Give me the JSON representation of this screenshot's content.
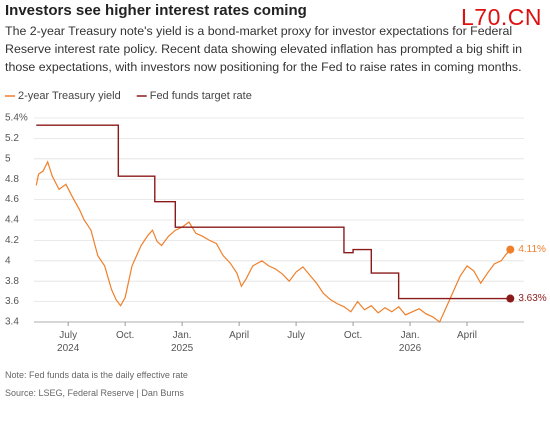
{
  "chart_data": {
    "type": "line",
    "title": "Investors see higher interest rates coming",
    "subtitle": "The 2-year Treasury note's yield is a bond-market proxy for investor expectations for Federal Reserve interest rate policy. Recent data showing elevated inflation has prompted a big shift in those expectations, with investors now positioning for the Fed to raise rates in coming months.",
    "watermark": "L70.CN",
    "note": "Note: Fed funds data is the daily effective rate",
    "source": "Source: LSEG, Federal Reserve | Dan Burns",
    "xlim": [
      2024.35,
      2026.5
    ],
    "xticks": [
      {
        "value": 2024.5,
        "label": "July\n2024"
      },
      {
        "value": 2024.75,
        "label": "Oct."
      },
      {
        "value": 2025.0,
        "label": "Jan.\n2025"
      },
      {
        "value": 2025.25,
        "label": "April"
      },
      {
        "value": 2025.5,
        "label": "July"
      },
      {
        "value": 2025.75,
        "label": "Oct."
      },
      {
        "value": 2026.0,
        "label": "Jan.\n2026"
      },
      {
        "value": 2026.25,
        "label": "April"
      }
    ],
    "ylim": [
      3.4,
      5.4
    ],
    "yticks": [
      {
        "value": 5.4,
        "label": "5.4%"
      },
      5.2,
      5,
      4.8,
      4.6,
      4.4,
      4.2,
      4,
      3.8,
      3.6,
      3.4
    ],
    "grid": true,
    "legend": "top-left",
    "series": [
      {
        "name": "2-year Treasury yield",
        "color": "#f07f2a",
        "step": false,
        "end_label": "4.11%",
        "x": [
          2024.36,
          2024.37,
          2024.39,
          2024.41,
          2024.43,
          2024.46,
          2024.49,
          2024.52,
          2024.55,
          2024.57,
          2024.6,
          2024.63,
          2024.66,
          2024.69,
          2024.71,
          2024.73,
          2024.75,
          2024.78,
          2024.8,
          2024.82,
          2024.85,
          2024.87,
          2024.89,
          2024.91,
          2024.94,
          2024.97,
          2025.0,
          2025.03,
          2025.06,
          2025.09,
          2025.12,
          2025.15,
          2025.18,
          2025.21,
          2025.24,
          2025.26,
          2025.28,
          2025.31,
          2025.35,
          2025.38,
          2025.41,
          2025.44,
          2025.47,
          2025.5,
          2025.53,
          2025.56,
          2025.59,
          2025.62,
          2025.65,
          2025.68,
          2025.71,
          2025.74,
          2025.77,
          2025.8,
          2025.83,
          2025.86,
          2025.89,
          2025.92,
          2025.95,
          2025.98,
          2026.01,
          2026.04,
          2026.07,
          2026.1,
          2026.13,
          2026.16,
          2026.19,
          2026.22,
          2026.25,
          2026.28,
          2026.31,
          2026.34,
          2026.37,
          2026.4,
          2026.42,
          2026.44
        ],
        "values": [
          4.74,
          4.85,
          4.88,
          4.97,
          4.83,
          4.7,
          4.75,
          4.62,
          4.5,
          4.4,
          4.3,
          4.05,
          3.95,
          3.72,
          3.62,
          3.56,
          3.64,
          3.95,
          4.05,
          4.15,
          4.25,
          4.3,
          4.19,
          4.15,
          4.24,
          4.3,
          4.33,
          4.38,
          4.27,
          4.24,
          4.2,
          4.17,
          4.05,
          3.98,
          3.88,
          3.75,
          3.82,
          3.95,
          4.0,
          3.95,
          3.92,
          3.87,
          3.8,
          3.89,
          3.94,
          3.86,
          3.78,
          3.68,
          3.62,
          3.58,
          3.55,
          3.5,
          3.6,
          3.52,
          3.56,
          3.49,
          3.54,
          3.5,
          3.55,
          3.47,
          3.5,
          3.53,
          3.48,
          3.45,
          3.4,
          3.55,
          3.7,
          3.85,
          3.95,
          3.9,
          3.78,
          3.88,
          3.97,
          4.0,
          4.06,
          4.11
        ]
      },
      {
        "name": "Fed funds target rate",
        "color": "#8b1a1a",
        "step": true,
        "end_label": "3.63%",
        "x": [
          2024.36,
          2024.72,
          2024.88,
          2024.97,
          2025.71,
          2025.75,
          2025.83,
          2025.95,
          2026.44
        ],
        "values": [
          5.33,
          4.83,
          4.58,
          4.33,
          4.08,
          4.11,
          3.88,
          3.63,
          3.63
        ]
      }
    ]
  }
}
